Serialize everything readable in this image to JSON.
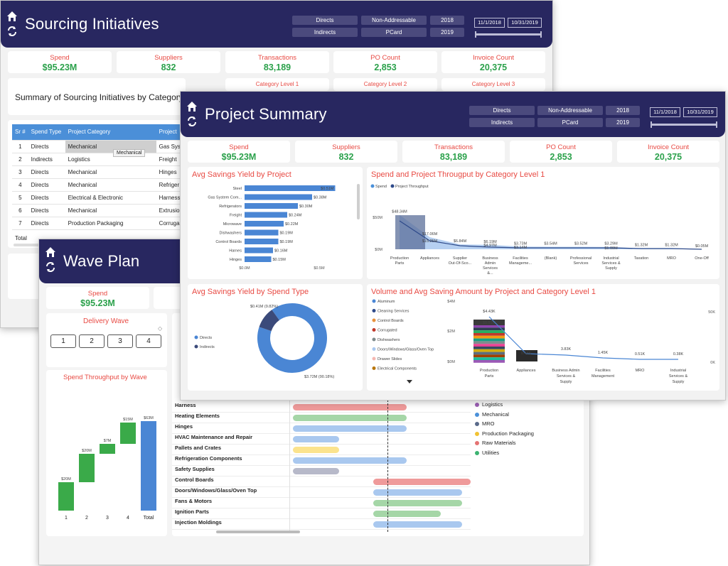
{
  "common": {
    "filters": {
      "directs": "Directs",
      "indirects": "Indirects",
      "non_addressable": "Non-Addressable",
      "pcard": "PCard",
      "y2018": "2018",
      "y2019": "2019"
    },
    "date_start": "11/1/2018",
    "date_end": "10/31/2019",
    "kpis": [
      {
        "label": "Spend",
        "value": "$95.23M"
      },
      {
        "label": "Suppliers",
        "value": "832"
      },
      {
        "label": "Transactions",
        "value": "83,189"
      },
      {
        "label": "PO Count",
        "value": "2,853"
      },
      {
        "label": "Invoice Count",
        "value": "20,375"
      }
    ]
  },
  "sourcing": {
    "title": "Sourcing Initiatives",
    "category_levels": [
      "Category Level 1",
      "Category Level 2",
      "Category Level 3"
    ],
    "summary_title": "Summary of Sourcing Initiatives by Category",
    "table": {
      "headers": [
        "Sr #",
        "Spend Type",
        "Project Category",
        "Project"
      ],
      "rows": [
        [
          "1",
          "Directs",
          "Mechanical",
          "Gas Syst"
        ],
        [
          "2",
          "Indirects",
          "Logistics",
          "Freight"
        ],
        [
          "3",
          "Directs",
          "Mechanical",
          "Hinges"
        ],
        [
          "4",
          "Directs",
          "Mechanical",
          "Refriger"
        ],
        [
          "5",
          "Directs",
          "Electrical & Electronic",
          "Harness"
        ],
        [
          "6",
          "Directs",
          "Mechanical",
          "Extrusio"
        ],
        [
          "7",
          "Directs",
          "Production Packaging",
          "Corruga"
        ]
      ],
      "total_label": "Total",
      "tooltip": "Mechanical"
    }
  },
  "project": {
    "title": "Project Summary",
    "avg_title": "Avg Savings Yield by Project",
    "avg_bars": [
      {
        "name": "Steel",
        "value": 0.51,
        "label": "$0.51M"
      },
      {
        "name": "Gas System Com...",
        "value": 0.38,
        "label": "$0.38M"
      },
      {
        "name": "Refrigerators",
        "value": 0.3,
        "label": "$0.30M"
      },
      {
        "name": "Freight",
        "value": 0.24,
        "label": "$0.24M"
      },
      {
        "name": "Microwave",
        "value": 0.22,
        "label": "$0.22M"
      },
      {
        "name": "Dishwashers",
        "value": 0.19,
        "label": "$0.19M"
      },
      {
        "name": "Control Boards",
        "value": 0.19,
        "label": "$0.19M"
      },
      {
        "name": "Harnes",
        "value": 0.16,
        "label": "$0.16M"
      },
      {
        "name": "Hinges",
        "value": 0.15,
        "label": "$0.15M"
      }
    ],
    "avg_axis": [
      "$0.0M",
      "$0.5M"
    ],
    "throughput_title": "Spend and Project Througput by Category Level 1",
    "throughput_legend": [
      "Spend",
      "Project Throughput"
    ],
    "throughput_axis": [
      "$50M",
      "$0M"
    ],
    "throughput_cats": [
      {
        "name": "Production Parts",
        "label": "$48.34M"
      },
      {
        "name": "Appliances",
        "label": "$17.06M"
      },
      {
        "name": "Supplier Out-Of-Sco...",
        "label": "$6.84M"
      },
      {
        "name": "Business Admin Services &...",
        "label": "$6.19M"
      },
      {
        "name": "Facilities Manageme...",
        "label": "$3.73M"
      },
      {
        "name": "(Blank)",
        "label": "$3.54M"
      },
      {
        "name": "Professional Services",
        "label": "$3.52M"
      },
      {
        "name": "Industrial Services & Supply",
        "label": "$3.29M"
      },
      {
        "name": "Taxation",
        "label": "$1.32M"
      },
      {
        "name": "MRO",
        "label": "$1.32M"
      },
      {
        "name": "One-Off",
        "label": "$0.05M"
      }
    ],
    "throughput_inner_labels": [
      "$15.25M",
      "$4.97M",
      "$3.14M",
      "$1.00M"
    ],
    "spendtype_title": "Avg Savings Yield by Spend Type",
    "spendtype_chart": {
      "type": "pie",
      "categories": [
        "Directs",
        "Indirects"
      ],
      "values": [
        3.72,
        0.41
      ],
      "labels": [
        "$3.72M (90.18%)",
        "$0.41M (9.82%)"
      ]
    },
    "volume_title": "Volume and Avg Saving Amount by Project and Category Level 1",
    "volume_legend": [
      "Aluminum",
      "Cleaning Services",
      "Control Boards",
      "Corrugated",
      "Dishwashers",
      "Doors/Windows/Glass/Oven Top",
      "Drawer Slides",
      "Electrical Components"
    ],
    "volume_axis_left": [
      "$4M",
      "$2M",
      "$0M"
    ],
    "volume_axis_right": [
      "50K",
      "0K"
    ],
    "volume_cats": [
      {
        "name": "Production Parts",
        "label": "$4.43K",
        "bar": "$0.51M"
      },
      {
        "name": "Appliances",
        "label": "0.48K"
      },
      {
        "name": "Business Admin Services & Supply",
        "label": "3.83K"
      },
      {
        "name": "Facilities Management",
        "label": "1.45K"
      },
      {
        "name": "MRO",
        "label": "0.51K"
      },
      {
        "name": "Industrial Services & Supply",
        "label": "0.38K"
      }
    ]
  },
  "wave": {
    "title": "Wave Plan",
    "kpi_label": "Spend",
    "kpi_value": "$95.23M",
    "delivery_title": "Delivery Wave",
    "delivery_buttons": [
      "1",
      "2",
      "3",
      "4"
    ],
    "throughput_title": "Spend Throughput by Wave",
    "waterfall": {
      "type": "bar",
      "categories": [
        "1",
        "2",
        "3",
        "4",
        "Total"
      ],
      "values": [
        20,
        20,
        7,
        15,
        63
      ],
      "labels": [
        "$20M",
        "$20M",
        "$7M",
        "$15M",
        "$63M"
      ]
    },
    "gantt_rows": [
      {
        "name": "Harness",
        "color": "#ef9a9a",
        "start": 0.0,
        "end": 0.64
      },
      {
        "name": "Heating Elements",
        "color": "#a5d6a7",
        "start": 0.0,
        "end": 0.64
      },
      {
        "name": "Hinges",
        "color": "#a9c8ef",
        "start": 0.0,
        "end": 0.64
      },
      {
        "name": "HVAC Maintenance and Repair",
        "color": "#a9c8ef",
        "start": 0.0,
        "end": 0.26
      },
      {
        "name": "Pallets and Crates",
        "color": "#fbe38d",
        "start": 0.0,
        "end": 0.26
      },
      {
        "name": "Refrigeration Components",
        "color": "#a9c8ef",
        "start": 0.0,
        "end": 0.64
      },
      {
        "name": "Safety Supplies",
        "color": "#b7b9c9",
        "start": 0.0,
        "end": 0.26
      },
      {
        "name": "Control Boards",
        "color": "#ef9a9a",
        "start": 0.45,
        "end": 1.0
      },
      {
        "name": "Doors/Windows/Glass/Oven Top",
        "color": "#a9c8ef",
        "start": 0.45,
        "end": 0.95
      },
      {
        "name": "Fans & Motors",
        "color": "#a5d6a7",
        "start": 0.45,
        "end": 0.95
      },
      {
        "name": "Ignition Parts",
        "color": "#a5d6a7",
        "start": 0.45,
        "end": 0.83
      },
      {
        "name": "Injection Moldings",
        "color": "#a9c8ef",
        "start": 0.45,
        "end": 0.95
      }
    ],
    "legend": [
      {
        "name": "Logistics",
        "color": "#9c5fb5"
      },
      {
        "name": "Mechanical",
        "color": "#4a90d9"
      },
      {
        "name": "MRO",
        "color": "#5a6a8a"
      },
      {
        "name": "Production Packaging",
        "color": "#f1c232"
      },
      {
        "name": "Raw Materials",
        "color": "#e57373"
      },
      {
        "name": "Utilities",
        "color": "#3cb371"
      }
    ]
  }
}
